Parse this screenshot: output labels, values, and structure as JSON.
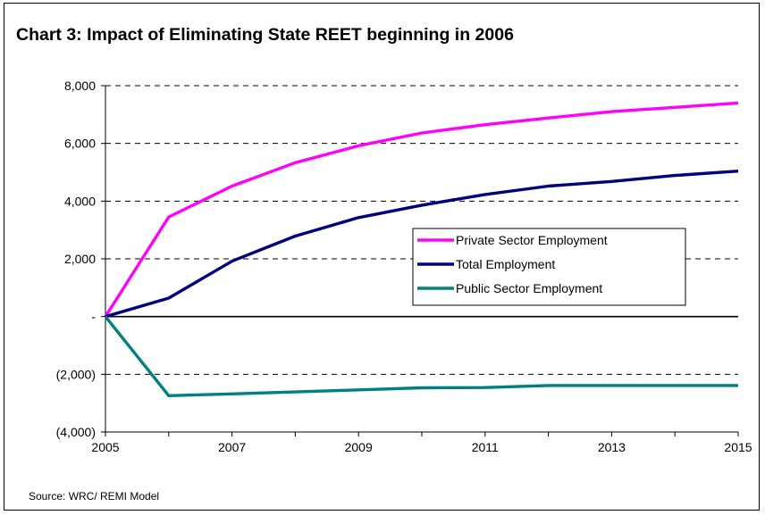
{
  "chart_data": {
    "type": "line",
    "title": "Chart 3: Impact of Eliminating State REET beginning in 2006",
    "source": "Source: WRC/ REMI Model",
    "x": [
      2005,
      2006,
      2007,
      2008,
      2009,
      2010,
      2011,
      2012,
      2013,
      2014,
      2015
    ],
    "xticks": [
      2005,
      2007,
      2009,
      2011,
      2013,
      2015
    ],
    "xlim": [
      2005,
      2015
    ],
    "ylim": [
      -4000,
      8000
    ],
    "yticks": [
      {
        "value": 8000,
        "label": "8,000"
      },
      {
        "value": 6000,
        "label": "6,000"
      },
      {
        "value": 4000,
        "label": "4,000"
      },
      {
        "value": 2000,
        "label": "2,000"
      },
      {
        "value": 0,
        "label": "-"
      },
      {
        "value": -2000,
        "label": "(2,000)"
      },
      {
        "value": -4000,
        "label": "(4,000)"
      }
    ],
    "grid": "horizontal-dashed",
    "legend_position": "center-right",
    "series": [
      {
        "name": "Private Sector Employment",
        "color": "#ff00ff",
        "values": [
          0,
          3450,
          4520,
          5330,
          5920,
          6360,
          6650,
          6880,
          7100,
          7250,
          7400
        ]
      },
      {
        "name": "Total Employment",
        "color": "#000080",
        "values": [
          0,
          640,
          1920,
          2790,
          3430,
          3860,
          4230,
          4520,
          4680,
          4890,
          5040
        ]
      },
      {
        "name": "Public Sector Employment",
        "color": "#008080",
        "values": [
          0,
          -2740,
          -2680,
          -2610,
          -2540,
          -2470,
          -2460,
          -2390,
          -2390,
          -2390,
          -2390
        ]
      }
    ]
  }
}
